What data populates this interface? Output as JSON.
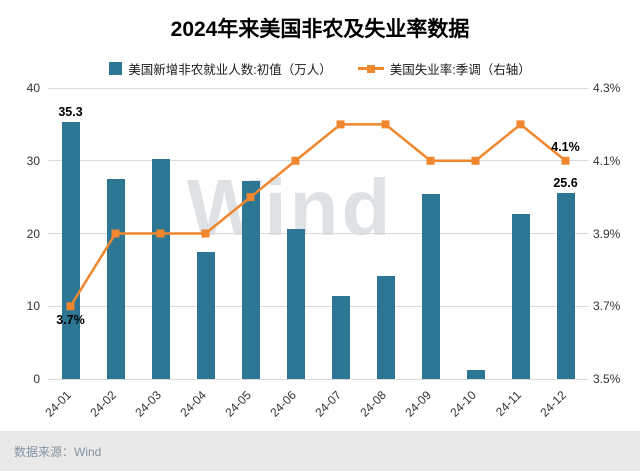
{
  "watermark": "Wind",
  "footer": {
    "source": "数据来源：Wind"
  },
  "chart_data": {
    "type": "bar+line",
    "title": "2024年来美国非农及失业率数据",
    "categories": [
      "24-01",
      "24-02",
      "24-03",
      "24-04",
      "24-05",
      "24-06",
      "24-07",
      "24-08",
      "24-09",
      "24-10",
      "24-11",
      "24-12"
    ],
    "series": [
      {
        "name": "美国新增非农就业人数:初值（万人）",
        "type": "bar",
        "axis": "left",
        "color": "#2d7795",
        "values": [
          35.3,
          27.5,
          30.3,
          17.5,
          27.2,
          20.6,
          11.4,
          14.2,
          25.4,
          1.2,
          22.7,
          25.6
        ]
      },
      {
        "name": "美国失业率:季调（右轴）",
        "type": "line",
        "axis": "right",
        "color": "#f0862d",
        "values": [
          3.7,
          3.9,
          3.9,
          3.9,
          4.0,
          4.1,
          4.2,
          4.2,
          4.1,
          4.1,
          4.2,
          4.1
        ]
      }
    ],
    "left_axis": {
      "min": 0,
      "max": 40,
      "ticks": [
        0,
        10,
        20,
        30,
        40
      ],
      "tick_labels": [
        "0",
        "10",
        "20",
        "30",
        "40"
      ]
    },
    "right_axis": {
      "min": 3.5,
      "max": 4.3,
      "ticks": [
        3.5,
        3.7,
        3.9,
        4.1,
        4.3
      ],
      "tick_labels": [
        "3.5%",
        "3.7%",
        "3.9%",
        "4.1%",
        "4.3%"
      ]
    },
    "grid": true,
    "legend_position": "top",
    "annotations": [
      {
        "series": 0,
        "index": 0,
        "text": "35.3",
        "position": "above"
      },
      {
        "series": 0,
        "index": 11,
        "text": "25.6",
        "position": "above"
      },
      {
        "series": 1,
        "index": 0,
        "text": "3.7%",
        "position": "below"
      },
      {
        "series": 1,
        "index": 11,
        "text": "4.1%",
        "position": "above"
      }
    ]
  }
}
